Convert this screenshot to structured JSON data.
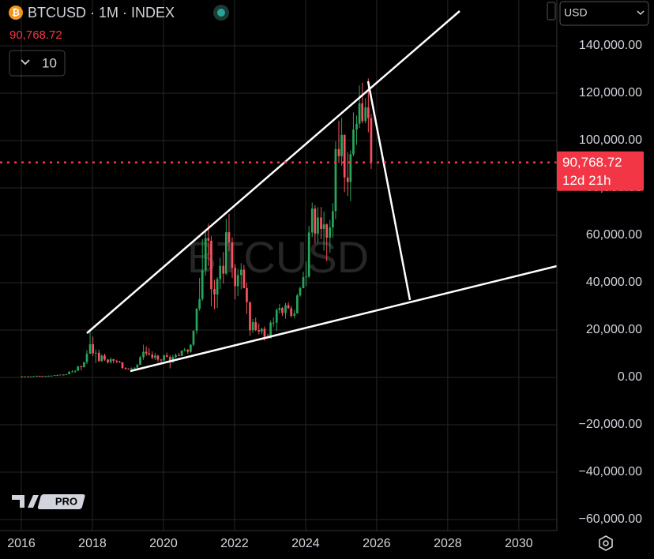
{
  "chart_data": {
    "type": "candlestick",
    "title": "BTCUSD · 1M · INDEX",
    "watermark": "BTCUSD",
    "interval_box": "10",
    "currency": "USD",
    "countdown": "12d 21h",
    "logo_text": "PRO",
    "last_price": {
      "value": 90768.72,
      "label": "90,768.72"
    },
    "up_color": "#26a65b",
    "down_color": "#f7525f",
    "last_price_color": "#f23645",
    "grid": true,
    "xlim": [
      2015.4,
      2031.07
    ],
    "xticks": [
      2016,
      2018,
      2020,
      2022,
      2024,
      2026,
      2028,
      2030
    ],
    "ylim": [
      -64667,
      159333
    ],
    "yticks": [
      {
        "value": -60000,
        "label": "−60,000.00"
      },
      {
        "value": -40000,
        "label": "−40,000.00"
      },
      {
        "value": -20000,
        "label": "−20,000.00"
      },
      {
        "value": 0,
        "label": "0.00"
      },
      {
        "value": 20000,
        "label": "20,000.00"
      },
      {
        "value": 40000,
        "label": "40,000.00"
      },
      {
        "value": 60000,
        "label": "60,000.00"
      },
      {
        "value": 80000,
        "label": "80,000.00"
      },
      {
        "value": 100000,
        "label": "100,000.00"
      },
      {
        "value": 120000,
        "label": "120,000.00"
      },
      {
        "value": 140000,
        "label": "140,000.00"
      }
    ],
    "x": [
      2016.0,
      2016.08,
      2016.17,
      2016.25,
      2016.33,
      2016.42,
      2016.5,
      2016.58,
      2016.67,
      2016.75,
      2016.83,
      2016.92,
      2017.0,
      2017.08,
      2017.17,
      2017.25,
      2017.33,
      2017.42,
      2017.5,
      2017.58,
      2017.67,
      2017.75,
      2017.83,
      2017.92,
      2018.0,
      2018.08,
      2018.17,
      2018.25,
      2018.33,
      2018.42,
      2018.5,
      2018.58,
      2018.67,
      2018.75,
      2018.83,
      2018.92,
      2019.0,
      2019.08,
      2019.17,
      2019.25,
      2019.33,
      2019.42,
      2019.5,
      2019.58,
      2019.67,
      2019.75,
      2019.83,
      2019.92,
      2020.0,
      2020.08,
      2020.17,
      2020.25,
      2020.33,
      2020.42,
      2020.5,
      2020.58,
      2020.67,
      2020.75,
      2020.83,
      2020.92,
      2021.0,
      2021.08,
      2021.17,
      2021.25,
      2021.33,
      2021.42,
      2021.5,
      2021.58,
      2021.67,
      2021.75,
      2021.83,
      2021.92,
      2022.0,
      2022.08,
      2022.17,
      2022.25,
      2022.33,
      2022.42,
      2022.5,
      2022.58,
      2022.67,
      2022.75,
      2022.83,
      2022.92,
      2023.0,
      2023.08,
      2023.17,
      2023.25,
      2023.33,
      2023.42,
      2023.5,
      2023.58,
      2023.67,
      2023.75,
      2023.83,
      2023.92,
      2024.0,
      2024.08,
      2024.17,
      2024.25,
      2024.33,
      2024.42,
      2024.5,
      2024.58,
      2024.67,
      2024.75,
      2024.83,
      2024.92,
      2025.0,
      2025.08,
      2025.17,
      2025.25,
      2025.33,
      2025.42,
      2025.5,
      2025.58,
      2025.67,
      2025.75,
      2025.83
    ],
    "open": [
      430,
      370,
      437,
      416,
      448,
      531,
      670,
      624,
      575,
      609,
      700,
      745,
      963,
      970,
      1190,
      1080,
      1350,
      2300,
      2480,
      2870,
      4700,
      4340,
      6450,
      10000,
      14000,
      10200,
      10400,
      6900,
      9200,
      7500,
      6400,
      7700,
      7000,
      6600,
      6300,
      4000,
      3700,
      3450,
      3800,
      4100,
      5300,
      8500,
      10800,
      10100,
      9600,
      8300,
      9200,
      7500,
      7200,
      9300,
      8600,
      6400,
      8600,
      9450,
      9100,
      11300,
      11650,
      10800,
      13800,
      19700,
      29000,
      33100,
      45200,
      58800,
      57700,
      37300,
      35000,
      41500,
      47100,
      43800,
      61300,
      57000,
      46300,
      38500,
      43200,
      45500,
      37700,
      31800,
      19900,
      23300,
      20000,
      19400,
      20500,
      17200,
      16500,
      23100,
      23100,
      28500,
      29300,
      27200,
      30500,
      29200,
      26000,
      27000,
      34600,
      37700,
      42300,
      42600,
      61200,
      71300,
      60700,
      67500,
      62700,
      64600,
      59000,
      63300,
      70200,
      96400,
      93400,
      102400,
      84400,
      82500,
      94200,
      104600,
      107100,
      115700,
      108200,
      114000,
      109500
    ],
    "high": [
      470,
      450,
      440,
      470,
      550,
      780,
      700,
      630,
      620,
      740,
      760,
      970,
      1160,
      1210,
      1290,
      1350,
      2700,
      3000,
      2950,
      4750,
      5000,
      6470,
      11500,
      19800,
      17200,
      11800,
      11700,
      9750,
      10000,
      7800,
      8500,
      7800,
      7400,
      7000,
      6550,
      4300,
      3900,
      4200,
      4200,
      5650,
      9100,
      13800,
      13100,
      12300,
      10950,
      10400,
      9500,
      7750,
      9600,
      10500,
      9200,
      9500,
      10100,
      10400,
      11450,
      12450,
      12050,
      14000,
      19800,
      29300,
      42000,
      58300,
      61800,
      64900,
      59600,
      41300,
      42300,
      50500,
      52900,
      67000,
      69000,
      59100,
      47900,
      45800,
      48200,
      47500,
      40000,
      31900,
      24700,
      25200,
      22800,
      21000,
      21500,
      18400,
      23900,
      25300,
      29200,
      31000,
      29800,
      31400,
      31800,
      30200,
      28500,
      35300,
      38400,
      44700,
      48900,
      64000,
      73800,
      72700,
      71900,
      71900,
      70000,
      65100,
      66500,
      73600,
      99600,
      108300,
      109600,
      102500,
      95000,
      95800,
      111900,
      110600,
      123200,
      124400,
      117900,
      126200,
      111200
    ],
    "low": [
      360,
      365,
      410,
      412,
      440,
      525,
      610,
      540,
      590,
      605,
      690,
      740,
      750,
      940,
      890,
      1060,
      1340,
      2100,
      1840,
      2670,
      3000,
      4150,
      5600,
      10900,
      9000,
      6000,
      6600,
      6500,
      7000,
      5800,
      5800,
      5900,
      6100,
      6200,
      3500,
      3200,
      3350,
      3400,
      3700,
      4100,
      5300,
      7400,
      9100,
      9300,
      7700,
      7300,
      6500,
      6400,
      6900,
      8500,
      3850,
      6200,
      8100,
      8900,
      9000,
      11000,
      9900,
      10400,
      13200,
      18300,
      28100,
      32300,
      43000,
      47000,
      30000,
      28800,
      29300,
      37300,
      39600,
      43300,
      53300,
      42000,
      33000,
      34300,
      37200,
      37600,
      26700,
      17600,
      18800,
      19500,
      18200,
      18200,
      15500,
      16300,
      16500,
      21400,
      19600,
      27000,
      25900,
      24800,
      28900,
      25300,
      24900,
      26900,
      34100,
      37600,
      38500,
      41900,
      59200,
      56500,
      56600,
      58400,
      53500,
      49000,
      52600,
      58900,
      66800,
      90500,
      89300,
      78200,
      76600,
      74400,
      93400,
      98200,
      105300,
      107300,
      107300,
      103500,
      88000
    ],
    "close": [
      370,
      437,
      416,
      448,
      531,
      670,
      624,
      575,
      609,
      700,
      745,
      963,
      970,
      1190,
      1080,
      1350,
      2300,
      2480,
      2870,
      4700,
      4340,
      6450,
      10000,
      14000,
      10200,
      10400,
      6900,
      9200,
      7500,
      6400,
      7700,
      7000,
      6600,
      6300,
      4000,
      3700,
      3450,
      3800,
      4100,
      5300,
      8500,
      10800,
      10100,
      9600,
      8300,
      9200,
      7500,
      7200,
      9300,
      8600,
      6400,
      8600,
      9450,
      9100,
      11300,
      11650,
      10800,
      13800,
      19700,
      29000,
      33100,
      45200,
      58800,
      57700,
      37300,
      35000,
      41500,
      47100,
      43800,
      61300,
      57000,
      46300,
      38500,
      43200,
      45500,
      37700,
      31800,
      19900,
      23300,
      20000,
      19400,
      20500,
      17200,
      16500,
      23100,
      23100,
      28500,
      29300,
      27200,
      30500,
      29200,
      26000,
      27000,
      34600,
      37700,
      42300,
      42600,
      61200,
      71300,
      60700,
      67500,
      62700,
      64600,
      59000,
      63300,
      70200,
      96400,
      93400,
      102400,
      84400,
      82500,
      94200,
      104600,
      107100,
      115700,
      108200,
      114000,
      109500,
      90768
    ]
  }
}
